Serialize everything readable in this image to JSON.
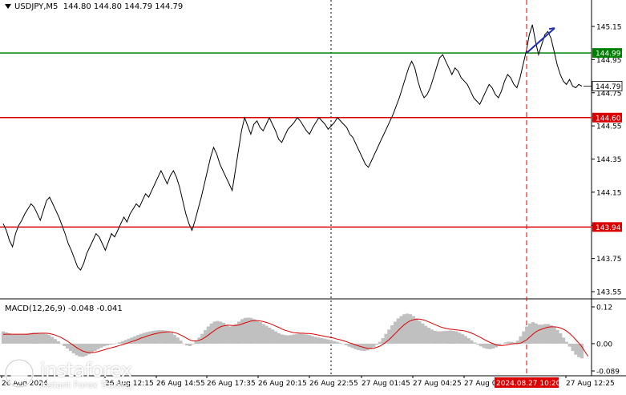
{
  "header": {
    "symbol": "USDJPY,M5",
    "ohlc": "144.80 144.80 144.79 144.79"
  },
  "macd": {
    "label": "MACD(12,26,9) -0.048 -0.041"
  },
  "branding": {
    "name": "instaforex",
    "tagline": "Instant Forex Trading"
  },
  "colors": {
    "price_line": "#000000",
    "support_resistance": "#dd0000",
    "entry_level": "#008000",
    "trend_arrow": "#1a2bb5",
    "histogram": "#c0c0c0",
    "signal_line": "#dd0000",
    "cursor_line": "#dd0000"
  },
  "chart_data": [
    {
      "type": "line",
      "title": "USDJPY,M5",
      "ylim": [
        143.5,
        145.2
      ],
      "y_ticks": [
        "145.15",
        "144.95",
        "144.75",
        "144.55",
        "144.35",
        "144.15",
        "143.95",
        "143.75",
        "143.55"
      ],
      "x_ticks": [
        "26 Aug 2024",
        "26 Aug 12:15",
        "26 Aug 14:55",
        "26 Aug 17:35",
        "26 Aug 20:15",
        "26 Aug 22:55",
        "27 Aug 01:45",
        "27 Aug 04:25",
        "27 Aug 07:05",
        "2024.08.27 10:20",
        "27 Aug 12:25"
      ],
      "series": [
        {
          "values": [
            143.96,
            143.92,
            143.86,
            143.82,
            143.9,
            143.95,
            143.98,
            144.02,
            144.05,
            144.08,
            144.06,
            144.02,
            143.98,
            144.04,
            144.1,
            144.12,
            144.08,
            144.04,
            144.0,
            143.95,
            143.9,
            143.84,
            143.8,
            143.75,
            143.7,
            143.68,
            143.72,
            143.78,
            143.82,
            143.86,
            143.9,
            143.88,
            143.84,
            143.8,
            143.85,
            143.9,
            143.88,
            143.92,
            143.96,
            144.0,
            143.97,
            144.02,
            144.05,
            144.08,
            144.06,
            144.1,
            144.14,
            144.12,
            144.16,
            144.2,
            144.24,
            144.28,
            144.24,
            144.2,
            144.25,
            144.28,
            144.24,
            144.18,
            144.1,
            144.02,
            143.96,
            143.92,
            143.98,
            144.05,
            144.12,
            144.2,
            144.28,
            144.36,
            144.42,
            144.38,
            144.32,
            144.28,
            144.24,
            144.2,
            144.16,
            144.28,
            144.4,
            144.52,
            144.6,
            144.55,
            144.5,
            144.56,
            144.58,
            144.54,
            144.52,
            144.56,
            144.6,
            144.56,
            144.52,
            144.47,
            144.45,
            144.49,
            144.53,
            144.55,
            144.57,
            144.6,
            144.58,
            144.55,
            144.52,
            144.5,
            144.54,
            144.57,
            144.6,
            144.58,
            144.56,
            144.53,
            144.55,
            144.57,
            144.6,
            144.58,
            144.56,
            144.54,
            144.5,
            144.48,
            144.44,
            144.4,
            144.36,
            144.32,
            144.3,
            144.34,
            144.38,
            144.42,
            144.46,
            144.5,
            144.54,
            144.58,
            144.62,
            144.67,
            144.72,
            144.78,
            144.84,
            144.9,
            144.94,
            144.9,
            144.82,
            144.76,
            144.72,
            144.74,
            144.78,
            144.84,
            144.9,
            144.96,
            144.98,
            144.94,
            144.9,
            144.86,
            144.9,
            144.88,
            144.84,
            144.82,
            144.8,
            144.76,
            144.72,
            144.7,
            144.68,
            144.72,
            144.76,
            144.8,
            144.78,
            144.74,
            144.72,
            144.76,
            144.82,
            144.86,
            144.84,
            144.8,
            144.78,
            144.84,
            144.92,
            145.0,
            145.1,
            145.16,
            145.06,
            144.98,
            145.04,
            145.1,
            145.12,
            145.08,
            145.0,
            144.92,
            144.86,
            144.82,
            144.8,
            144.83,
            144.79,
            144.78,
            144.8,
            144.79
          ]
        }
      ],
      "levels": [
        {
          "label": "144.99",
          "value": 144.99,
          "color": "#008000"
        },
        {
          "label": "144.60",
          "value": 144.6,
          "color": "#dd0000"
        },
        {
          "label": "143.94",
          "value": 143.94,
          "color": "#dd0000"
        }
      ],
      "current_price": {
        "label": "144.79",
        "value": 144.79
      },
      "annotations": {
        "trend_arrow": {
          "from_value": 144.99,
          "to_value": 145.14
        },
        "cursor_time": "2024.08.27 10:20"
      },
      "grid": false
    },
    {
      "type": "bar",
      "title": "MACD(12,26,9) -0.048 -0.041",
      "ylim": [
        -0.089,
        0.12
      ],
      "y_ticks": [
        "0.12",
        "0.00",
        "-0.089"
      ],
      "series": [
        {
          "name": "MACD",
          "values": [
            0.04,
            0.037,
            0.034,
            0.031,
            0.03,
            0.03,
            0.031,
            0.032,
            0.033,
            0.035,
            0.036,
            0.036,
            0.035,
            0.034,
            0.032,
            0.028,
            0.022,
            0.015,
            0.008,
            0.0,
            -0.008,
            -0.016,
            -0.024,
            -0.032,
            -0.038,
            -0.042,
            -0.043,
            -0.04,
            -0.035,
            -0.03,
            -0.024,
            -0.018,
            -0.013,
            -0.009,
            -0.006,
            -0.004,
            -0.002,
            0.001,
            0.004,
            0.008,
            0.012,
            0.016,
            0.02,
            0.024,
            0.028,
            0.032,
            0.035,
            0.038,
            0.04,
            0.042,
            0.043,
            0.044,
            0.044,
            0.043,
            0.04,
            0.035,
            0.028,
            0.02,
            0.01,
            0.0,
            -0.006,
            -0.008,
            -0.002,
            0.008,
            0.02,
            0.032,
            0.044,
            0.056,
            0.066,
            0.072,
            0.074,
            0.072,
            0.068,
            0.062,
            0.056,
            0.058,
            0.064,
            0.072,
            0.08,
            0.084,
            0.085,
            0.084,
            0.08,
            0.075,
            0.07,
            0.064,
            0.058,
            0.052,
            0.046,
            0.04,
            0.034,
            0.03,
            0.028,
            0.027,
            0.028,
            0.03,
            0.032,
            0.033,
            0.032,
            0.03,
            0.028,
            0.025,
            0.022,
            0.02,
            0.018,
            0.016,
            0.014,
            0.012,
            0.009,
            0.006,
            0.003,
            -0.001,
            -0.005,
            -0.01,
            -0.014,
            -0.018,
            -0.021,
            -0.023,
            -0.024,
            -0.022,
            -0.018,
            -0.012,
            -0.004,
            0.006,
            0.018,
            0.032,
            0.046,
            0.06,
            0.072,
            0.082,
            0.09,
            0.096,
            0.098,
            0.096,
            0.09,
            0.082,
            0.074,
            0.066,
            0.058,
            0.052,
            0.046,
            0.042,
            0.04,
            0.04,
            0.041,
            0.042,
            0.043,
            0.042,
            0.04,
            0.036,
            0.031,
            0.025,
            0.018,
            0.011,
            0.004,
            -0.003,
            -0.009,
            -0.014,
            -0.017,
            -0.018,
            -0.016,
            -0.012,
            -0.006,
            0.0,
            0.004,
            0.006,
            0.006,
            0.004,
            0.01,
            0.024,
            0.04,
            0.056,
            0.066,
            0.07,
            0.066,
            0.062,
            0.062,
            0.064,
            0.064,
            0.06,
            0.054,
            0.045,
            0.034,
            0.02,
            0.006,
            -0.01,
            -0.024,
            -0.036,
            -0.044,
            -0.048
          ]
        },
        {
          "name": "Signal",
          "values": [
            0.03,
            0.031,
            0.031,
            0.031,
            0.031,
            0.031,
            0.031,
            0.031,
            0.031,
            0.032,
            0.033,
            0.033,
            0.034,
            0.034,
            0.034,
            0.033,
            0.031,
            0.028,
            0.024,
            0.02,
            0.014,
            0.008,
            0.001,
            -0.006,
            -0.013,
            -0.019,
            -0.024,
            -0.027,
            -0.029,
            -0.029,
            -0.028,
            -0.026,
            -0.023,
            -0.02,
            -0.017,
            -0.014,
            -0.012,
            -0.009,
            -0.006,
            -0.003,
            0.0,
            0.003,
            0.007,
            0.01,
            0.014,
            0.018,
            0.021,
            0.025,
            0.028,
            0.031,
            0.033,
            0.035,
            0.037,
            0.038,
            0.039,
            0.038,
            0.036,
            0.033,
            0.028,
            0.023,
            0.017,
            0.012,
            0.009,
            0.009,
            0.011,
            0.015,
            0.021,
            0.028,
            0.036,
            0.043,
            0.05,
            0.055,
            0.058,
            0.06,
            0.06,
            0.059,
            0.059,
            0.061,
            0.064,
            0.068,
            0.071,
            0.074,
            0.075,
            0.075,
            0.074,
            0.072,
            0.069,
            0.066,
            0.062,
            0.057,
            0.053,
            0.048,
            0.044,
            0.041,
            0.038,
            0.036,
            0.035,
            0.034,
            0.034,
            0.033,
            0.033,
            0.032,
            0.03,
            0.028,
            0.026,
            0.024,
            0.022,
            0.02,
            0.018,
            0.015,
            0.013,
            0.01,
            0.007,
            0.003,
            0.0,
            -0.004,
            -0.007,
            -0.01,
            -0.013,
            -0.015,
            -0.015,
            -0.015,
            -0.012,
            -0.008,
            -0.002,
            0.005,
            0.013,
            0.023,
            0.033,
            0.043,
            0.053,
            0.062,
            0.069,
            0.075,
            0.078,
            0.08,
            0.08,
            0.078,
            0.075,
            0.071,
            0.067,
            0.062,
            0.058,
            0.054,
            0.051,
            0.049,
            0.047,
            0.046,
            0.045,
            0.044,
            0.043,
            0.041,
            0.038,
            0.034,
            0.03,
            0.025,
            0.02,
            0.014,
            0.009,
            0.004,
            0.0,
            -0.004,
            -0.006,
            -0.006,
            -0.005,
            -0.003,
            -0.001,
            0.0,
            0.0,
            0.002,
            0.007,
            0.013,
            0.022,
            0.031,
            0.039,
            0.044,
            0.048,
            0.051,
            0.054,
            0.055,
            0.055,
            0.054,
            0.051,
            0.047,
            0.041,
            0.033,
            0.024,
            0.013,
            0.002,
            -0.01,
            -0.026,
            -0.041
          ]
        }
      ],
      "grid": false
    }
  ]
}
